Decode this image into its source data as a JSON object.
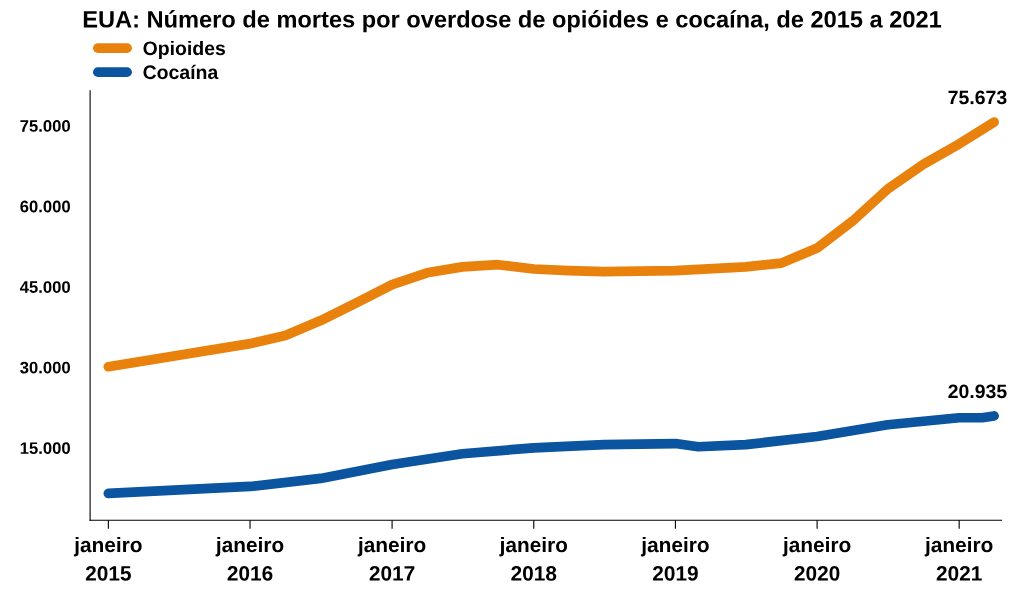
{
  "chart_data": {
    "type": "line",
    "title": "EUA: Número de mortes por overdose de opióides e cocaína, de 2015 a 2021",
    "x": [
      "2015-01",
      "2016-01",
      "2016-04",
      "2016-07",
      "2016-10",
      "2017-01",
      "2017-04",
      "2017-07",
      "2017-10",
      "2018-01",
      "2018-04",
      "2018-07",
      "2019-01",
      "2019-07",
      "2019-10",
      "2020-01",
      "2020-04",
      "2020-07",
      "2020-10",
      "2021-01",
      "2021-04"
    ],
    "series": [
      {
        "name": "Opioides",
        "color": "#e8820c",
        "values": [
          30100,
          34400,
          35900,
          38700,
          42000,
          45400,
          47600,
          48700,
          49100,
          48300,
          48000,
          47800,
          48000,
          48700,
          49400,
          52200,
          57200,
          63200,
          67800,
          71600,
          75673
        ]
      },
      {
        "name": "Cocaína",
        "color": "#0a54a0",
        "x": [
          "2015-01",
          "2016-01",
          "2016-07",
          "2017-01",
          "2017-07",
          "2018-01",
          "2018-07",
          "2019-01",
          "2019-03",
          "2019-07",
          "2020-01",
          "2020-07",
          "2021-01",
          "2021-03",
          "2021-04"
        ],
        "values": [
          6500,
          7800,
          9300,
          11900,
          13900,
          15000,
          15600,
          15800,
          15200,
          15600,
          17100,
          19300,
          20600,
          20600,
          20935
        ]
      }
    ],
    "annotations": [
      {
        "text": "75.673",
        "x": "2021-04",
        "y": 75673
      },
      {
        "text": "20.935",
        "x": "2021-04",
        "y": 20935
      }
    ],
    "xlim": [
      "2014-11-15",
      "2021-04-20"
    ],
    "xticks": [
      {
        "value": "2015-01",
        "label": "janeiro\n2015"
      },
      {
        "value": "2016-01",
        "label": "janeiro\n2016"
      },
      {
        "value": "2017-01",
        "label": "janeiro\n2017"
      },
      {
        "value": "2018-01",
        "label": "janeiro\n2018"
      },
      {
        "value": "2019-01",
        "label": "janeiro\n2019"
      },
      {
        "value": "2020-01",
        "label": "janeiro\n2020"
      },
      {
        "value": "2021-01",
        "label": "janeiro\n2021"
      }
    ],
    "ylim": [
      1500,
      81500
    ],
    "yticks": [
      {
        "value": 15000,
        "label": "15.000"
      },
      {
        "value": 30000,
        "label": "30.000"
      },
      {
        "value": 45000,
        "label": "45.000"
      },
      {
        "value": 60000,
        "label": "60.000"
      },
      {
        "value": 75000,
        "label": "75.000"
      }
    ],
    "grid": false,
    "legend": "top left",
    "marker": "none",
    "line_style": "solid"
  }
}
